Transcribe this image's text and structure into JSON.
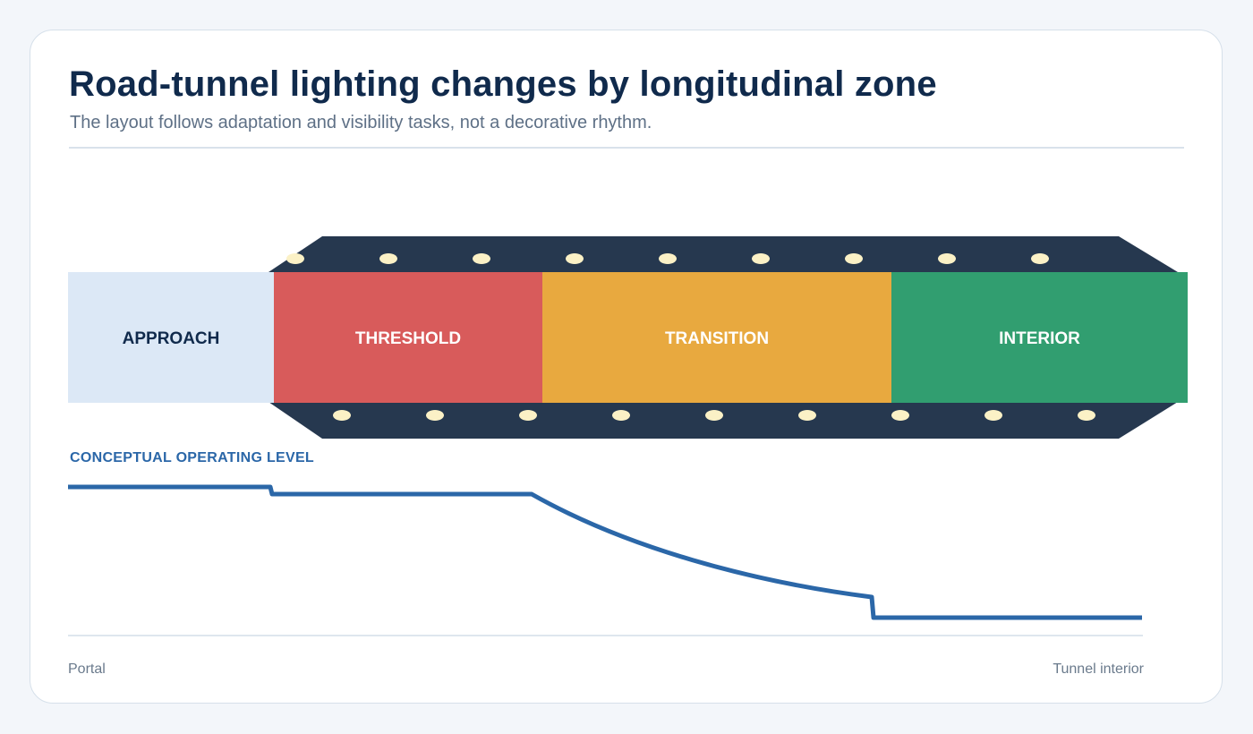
{
  "header": {
    "title": "Road-tunnel lighting changes by longitudinal zone",
    "subtitle": "The layout follows adaptation and visibility tasks, not a decorative rhythm."
  },
  "zones": [
    {
      "id": "approach",
      "label": "APPROACH",
      "color": "#dce8f6",
      "text_color": "#102a4c"
    },
    {
      "id": "threshold",
      "label": "THRESHOLD",
      "color": "#d85b5b",
      "text_color": "#ffffff"
    },
    {
      "id": "transition",
      "label": "TRANSITION",
      "color": "#e8a93f",
      "text_color": "#ffffff"
    },
    {
      "id": "interior",
      "label": "INTERIOR",
      "color": "#319e70",
      "text_color": "#ffffff"
    }
  ],
  "colors": {
    "tunnel_shell": "#26384f",
    "luminaire": "#fbf1c6",
    "level_line": "#2b67a8",
    "baseline": "#d4dee8"
  },
  "level_chart": {
    "title": "CONCEPTUAL OPERATING LEVEL",
    "axis_start": "Portal",
    "axis_end": "Tunnel interior"
  }
}
